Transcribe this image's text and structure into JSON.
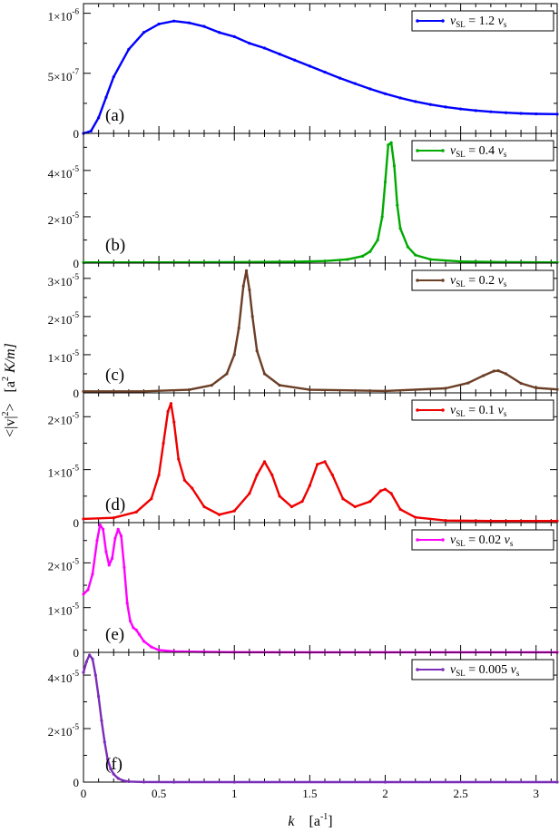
{
  "chart_data": {
    "type": "line",
    "layout": "vertically stacked panels sharing the x-axis",
    "xlabel_main": "k",
    "xlabel_unit": "[a",
    "xlabel_unit_sup": "-1",
    "xlabel_unit_close": "]",
    "ylabel_main": "<|v|",
    "ylabel_sup": "2",
    "ylabel_close": ">",
    "ylabel_unit": "[a",
    "ylabel_unit_sup": "2",
    "ylabel_unit_rest": " K/m]",
    "xlim": [
      0,
      3.14
    ],
    "x_ticks": [
      {
        "value": 0,
        "label": "0"
      },
      {
        "value": 0.5,
        "label": "0.5"
      },
      {
        "value": 1,
        "label": "1"
      },
      {
        "value": 1.5,
        "label": "1.5"
      },
      {
        "value": 2,
        "label": "2"
      },
      {
        "value": 2.5,
        "label": "2.5"
      },
      {
        "value": 3,
        "label": "3"
      }
    ],
    "grid": false,
    "legend_position": "top-right of each panel",
    "panels": [
      {
        "label": "(a)",
        "series_name": "v",
        "series_sub": "SL",
        "series_eq": " = 1.2 ",
        "series_v": "v",
        "series_v_sub": "s",
        "color": "#0000ff",
        "ylim": [
          0,
          1.08e-06
        ],
        "y_ticks": [
          {
            "value": 0,
            "mant": "0",
            "exp": ""
          },
          {
            "value": 5e-07,
            "mant": "5×10",
            "exp": "-7"
          },
          {
            "value": 1e-06,
            "mant": "1×10",
            "exp": "-6"
          }
        ],
        "x": [
          0,
          0.05,
          0.1,
          0.15,
          0.2,
          0.3,
          0.4,
          0.5,
          0.6,
          0.7,
          0.8,
          0.9,
          1.0,
          1.1,
          1.2,
          1.3,
          1.4,
          1.5,
          1.6,
          1.7,
          1.8,
          1.9,
          2.0,
          2.1,
          2.2,
          2.3,
          2.4,
          2.5,
          2.6,
          2.7,
          2.8,
          2.9,
          3.0,
          3.14
        ],
        "y": [
          0,
          2e-08,
          1.3e-07,
          3e-07,
          4.7e-07,
          7e-07,
          8.4e-07,
          9.1e-07,
          9.35e-07,
          9.2e-07,
          8.9e-07,
          8.4e-07,
          8.05e-07,
          7.5e-07,
          7.1e-07,
          6.6e-07,
          6.1e-07,
          5.6e-07,
          5.1e-07,
          4.6e-07,
          4.15e-07,
          3.7e-07,
          3.3e-07,
          2.95e-07,
          2.65e-07,
          2.4e-07,
          2.2e-07,
          2.03e-07,
          1.9e-07,
          1.8e-07,
          1.72e-07,
          1.66e-07,
          1.62e-07,
          1.6e-07
        ]
      },
      {
        "label": "(b)",
        "series_name": "v",
        "series_sub": "SL",
        "series_eq": " = 0.4 ",
        "series_v": "v",
        "series_v_sub": "s",
        "color": "#00aa00",
        "ylim": [
          0,
          5.6e-05
        ],
        "y_ticks": [
          {
            "value": 0,
            "mant": "0",
            "exp": ""
          },
          {
            "value": 2e-05,
            "mant": "2×10",
            "exp": "-5"
          },
          {
            "value": 4e-05,
            "mant": "4×10",
            "exp": "-5"
          }
        ],
        "x": [
          0,
          0.5,
          1.0,
          1.4,
          1.6,
          1.75,
          1.85,
          1.9,
          1.95,
          1.98,
          2.0,
          2.02,
          2.04,
          2.06,
          2.08,
          2.1,
          2.15,
          2.2,
          2.3,
          2.5,
          2.8,
          3.14
        ],
        "y": [
          3e-07,
          3e-07,
          4e-07,
          6e-07,
          9e-07,
          1.6e-06,
          3e-06,
          5e-06,
          1e-05,
          2e-05,
          3.5e-05,
          5.1e-05,
          5.2e-05,
          4.2e-05,
          2.5e-05,
          1.5e-05,
          7e-06,
          3.5e-06,
          1.6e-06,
          7e-07,
          4e-07,
          3e-07
        ]
      },
      {
        "label": "(c)",
        "series_name": "v",
        "series_sub": "SL",
        "series_eq": " = 0.2 ",
        "series_v": "v",
        "series_v_sub": "s",
        "color": "#6b3e26",
        "ylim": [
          0,
          3.4e-05
        ],
        "y_ticks": [
          {
            "value": 0,
            "mant": "0",
            "exp": ""
          },
          {
            "value": 1e-05,
            "mant": "1×10",
            "exp": "-5"
          },
          {
            "value": 2e-05,
            "mant": "2×10",
            "exp": "-5"
          },
          {
            "value": 3e-05,
            "mant": "3×10",
            "exp": "-5"
          }
        ],
        "x": [
          0,
          0.4,
          0.7,
          0.85,
          0.95,
          1.0,
          1.03,
          1.06,
          1.08,
          1.1,
          1.12,
          1.15,
          1.2,
          1.3,
          1.5,
          2.0,
          2.4,
          2.55,
          2.65,
          2.72,
          2.75,
          2.8,
          2.9,
          3.0,
          3.14
        ],
        "y": [
          4e-07,
          4e-07,
          8e-07,
          2e-06,
          5e-06,
          1e-05,
          1.7e-05,
          2.8e-05,
          3.2e-05,
          2.7e-05,
          2e-05,
          1.1e-05,
          5e-06,
          2e-06,
          8e-07,
          5e-07,
          1.2e-06,
          2.6e-06,
          4.5e-06,
          5.7e-06,
          5.8e-06,
          5e-06,
          2.5e-06,
          1.3e-06,
          9e-07
        ]
      },
      {
        "label": "(d)",
        "series_name": "v",
        "series_sub": "SL",
        "series_eq": " = 0.1 ",
        "series_v": "v",
        "series_v_sub": "s",
        "color": "#ee0000",
        "ylim": [
          0,
          2.45e-05
        ],
        "y_ticks": [
          {
            "value": 0,
            "mant": "0",
            "exp": ""
          },
          {
            "value": 1e-05,
            "mant": "1×10",
            "exp": "-5"
          },
          {
            "value": 2e-05,
            "mant": "2×10",
            "exp": "-5"
          }
        ],
        "x": [
          0,
          0.2,
          0.35,
          0.45,
          0.5,
          0.53,
          0.56,
          0.58,
          0.6,
          0.63,
          0.67,
          0.72,
          0.8,
          0.9,
          1.0,
          1.1,
          1.15,
          1.2,
          1.25,
          1.3,
          1.38,
          1.45,
          1.5,
          1.55,
          1.6,
          1.65,
          1.72,
          1.8,
          1.9,
          1.97,
          2.0,
          2.04,
          2.1,
          2.2,
          2.4,
          2.7,
          3.0,
          3.14
        ],
        "y": [
          7e-07,
          9e-07,
          2e-06,
          4.5e-06,
          9e-06,
          1.5e-05,
          2.1e-05,
          2.25e-05,
          1.9e-05,
          1.2e-05,
          8e-06,
          6.5e-06,
          3e-06,
          1.5e-06,
          2.2e-06,
          5.5e-06,
          9e-06,
          1.15e-05,
          9e-06,
          5e-06,
          3e-06,
          4e-06,
          7e-06,
          1.1e-05,
          1.15e-05,
          9e-06,
          4.5e-06,
          3e-06,
          4e-06,
          6e-06,
          6.3e-06,
          5.5e-06,
          2.5e-06,
          1e-06,
          4e-07,
          3e-07,
          3e-07,
          3e-07
        ]
      },
      {
        "label": "(e)",
        "series_name": "v",
        "series_sub": "SL",
        "series_eq": " = 0.02 ",
        "series_v": "v",
        "series_v_sub": "s",
        "color": "#ff00ff",
        "ylim": [
          0,
          2.9e-05
        ],
        "y_ticks": [
          {
            "value": 0,
            "mant": "0",
            "exp": ""
          },
          {
            "value": 1e-05,
            "mant": "1×10",
            "exp": "-5"
          },
          {
            "value": 2e-05,
            "mant": "2×10",
            "exp": "-5"
          }
        ],
        "x": [
          0,
          0.03,
          0.06,
          0.09,
          0.11,
          0.13,
          0.15,
          0.17,
          0.19,
          0.21,
          0.23,
          0.25,
          0.27,
          0.29,
          0.31,
          0.33,
          0.35,
          0.37,
          0.4,
          0.45,
          0.5,
          0.6,
          0.8,
          1.0,
          1.5,
          2.0,
          3.14
        ],
        "y": [
          1.3e-05,
          1.4e-05,
          1.75e-05,
          2.5e-05,
          2.85e-05,
          2.75e-05,
          2.25e-05,
          1.95e-05,
          2.1e-05,
          2.55e-05,
          2.75e-05,
          2.6e-05,
          1.9e-05,
          1.1e-05,
          7e-06,
          5.5e-06,
          5e-06,
          4e-06,
          2.5e-06,
          1.2e-06,
          5e-07,
          2e-07,
          1e-07,
          5e-08,
          3e-08,
          2e-08,
          2e-08
        ]
      },
      {
        "label": "(f)",
        "series_name": "v",
        "series_sub": "SL",
        "series_eq": " = 0.005 ",
        "series_v": "v",
        "series_v_sub": "s",
        "color": "#7a2eb8",
        "ylim": [
          0,
          4.85e-05
        ],
        "y_ticks": [
          {
            "value": 0,
            "mant": "0",
            "exp": ""
          },
          {
            "value": 2e-05,
            "mant": "2×10",
            "exp": "-5"
          },
          {
            "value": 4e-05,
            "mant": "4×10",
            "exp": "-5"
          }
        ],
        "x": [
          0,
          0.02,
          0.04,
          0.06,
          0.08,
          0.1,
          0.12,
          0.14,
          0.16,
          0.18,
          0.2,
          0.23,
          0.26,
          0.3,
          0.4,
          0.6,
          1.0,
          2.0,
          3.14
        ],
        "y": [
          4.1e-05,
          4.5e-05,
          4.75e-05,
          4.6e-05,
          4e-05,
          3.2e-05,
          2.3e-05,
          1.5e-05,
          8.5e-06,
          5e-06,
          3e-06,
          1.4e-06,
          6e-07,
          2e-07,
          5e-08,
          1e-08,
          1e-08,
          1e-08,
          1e-08
        ]
      }
    ]
  }
}
